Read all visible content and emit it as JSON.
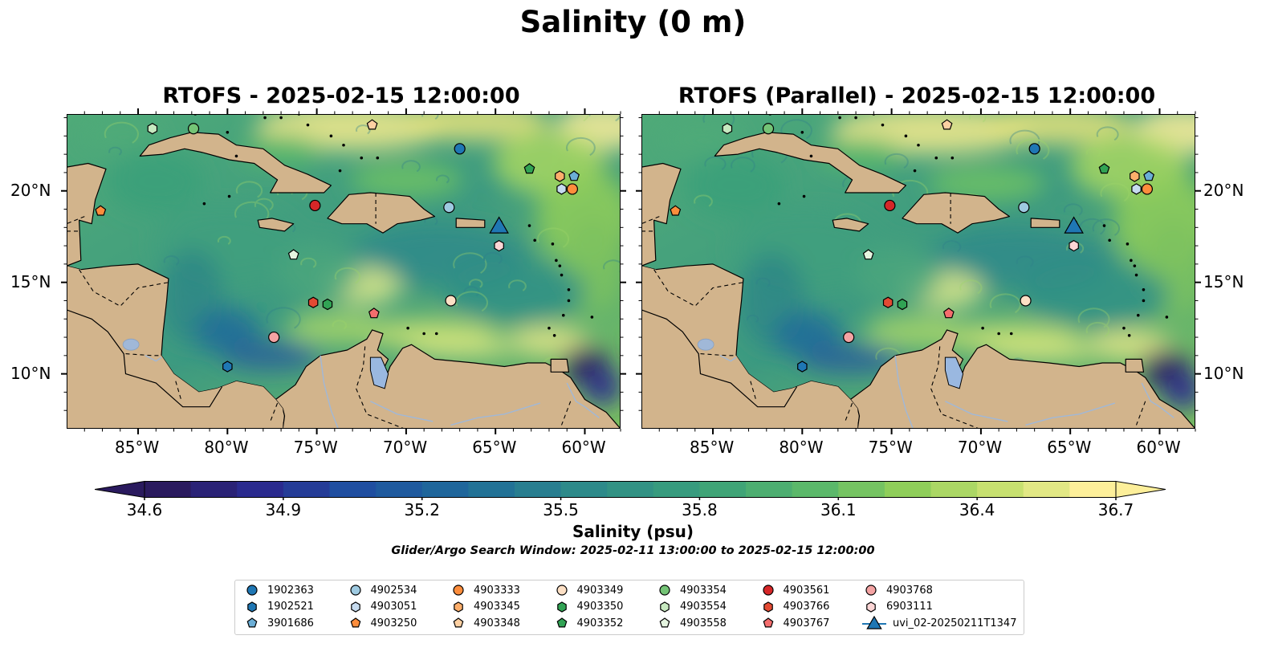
{
  "figure": {
    "title": "Salinity (0 m)",
    "panels": [
      {
        "title": "RTOFS - 2025-02-15 12:00:00"
      },
      {
        "title": "RTOFS (Parallel) - 2025-02-15 12:00:00"
      }
    ],
    "lon_ticks": [
      "85°W",
      "80°W",
      "75°W",
      "70°W",
      "65°W",
      "60°W"
    ],
    "lat_ticks": [
      "20°N",
      "15°N",
      "10°N"
    ],
    "colorbar": {
      "label": "Salinity (psu)",
      "ticks": [
        "34.6",
        "34.9",
        "35.2",
        "35.5",
        "35.8",
        "36.1",
        "36.4",
        "36.7"
      ],
      "range": [
        34.6,
        36.7
      ],
      "extend": "both",
      "colormap": [
        "#2a1a5e",
        "#2a2a8e",
        "#1f4ea0",
        "#1f6b9a",
        "#2d8a8a",
        "#3aa07a",
        "#5bb86a",
        "#8fce5a",
        "#c7e070",
        "#fdef9a"
      ]
    },
    "search_window": "Glider/Argo Search Window: 2025-02-11 13:00:00 to 2025-02-15 12:00:00",
    "map_extent": {
      "lon": [
        -89,
        -58
      ],
      "lat": [
        7,
        24.2
      ]
    },
    "colors": {
      "land": "#d2b48c",
      "deep_ocean": "#2a1a5e",
      "river": "#a0b8d8"
    }
  },
  "legend": [
    {
      "id": "1902363",
      "marker": "circle",
      "color": "#1f77b4",
      "lon": -67.0,
      "lat": 22.3
    },
    {
      "id": "1902521",
      "marker": "hexagon",
      "color": "#1f77b4",
      "lon": -80.0,
      "lat": 10.4
    },
    {
      "id": "3901686",
      "marker": "pentagon",
      "color": "#6baed6",
      "lon": -60.6,
      "lat": 20.8
    },
    {
      "id": "4902534",
      "marker": "circle",
      "color": "#9ecae1",
      "lon": -67.6,
      "lat": 19.1
    },
    {
      "id": "4903051",
      "marker": "hexagon",
      "color": "#c6dbef",
      "lon": -61.3,
      "lat": 20.1
    },
    {
      "id": "4903250",
      "marker": "pentagon",
      "color": "#fd8d3c",
      "lon": -87.1,
      "lat": 18.9
    },
    {
      "id": "4903333",
      "marker": "circle",
      "color": "#fd8d3c",
      "lon": -60.7,
      "lat": 20.1
    },
    {
      "id": "4903345",
      "marker": "hexagon",
      "color": "#fdae6b",
      "lon": -61.4,
      "lat": 20.8
    },
    {
      "id": "4903348",
      "marker": "pentagon",
      "color": "#fdd0a2",
      "lon": -71.9,
      "lat": 23.6
    },
    {
      "id": "4903349",
      "marker": "circle",
      "color": "#fde0c5",
      "lon": -67.5,
      "lat": 14.0
    },
    {
      "id": "4903350",
      "marker": "hexagon",
      "color": "#31a354",
      "lon": -74.4,
      "lat": 13.8
    },
    {
      "id": "4903352",
      "marker": "pentagon",
      "color": "#31a354",
      "lon": -63.1,
      "lat": 21.2
    },
    {
      "id": "4903354",
      "marker": "circle",
      "color": "#74c476",
      "lon": -81.9,
      "lat": 23.4
    },
    {
      "id": "4903554",
      "marker": "hexagon",
      "color": "#c7e9c0",
      "lon": -84.2,
      "lat": 23.4
    },
    {
      "id": "4903558",
      "marker": "pentagon",
      "color": "#e5f5e0",
      "lon": -76.3,
      "lat": 16.5
    },
    {
      "id": "4903561",
      "marker": "circle",
      "color": "#d62728",
      "lon": -75.1,
      "lat": 19.2
    },
    {
      "id": "4903766",
      "marker": "hexagon",
      "color": "#e34a33",
      "lon": -75.2,
      "lat": 13.9
    },
    {
      "id": "4903767",
      "marker": "pentagon",
      "color": "#f46d6d",
      "lon": -71.8,
      "lat": 13.3
    },
    {
      "id": "4903768",
      "marker": "circle",
      "color": "#f4a3a3",
      "lon": -77.4,
      "lat": 12.0
    },
    {
      "id": "6903111",
      "marker": "hexagon",
      "color": "#fcd5d5",
      "lon": -64.8,
      "lat": 17.0
    },
    {
      "id": "uvi_02-20250211T1347",
      "marker": "triangle",
      "color": "#1f77b4",
      "lon": -64.8,
      "lat": 18.1,
      "line": true
    }
  ]
}
